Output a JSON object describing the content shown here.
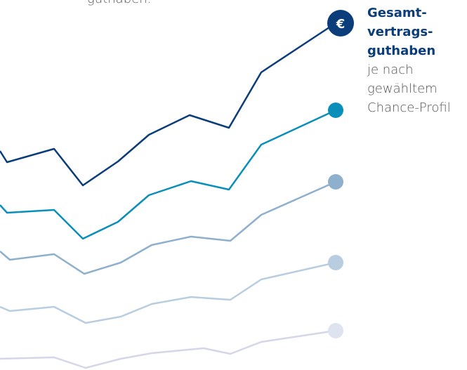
{
  "caption": "guthaben.",
  "legend": {
    "icon": "€",
    "title": [
      "Gesamt-",
      "vertrags-",
      "guthaben"
    ],
    "text": [
      "je nach",
      "gewähltem",
      "Chance-Profil"
    ]
  }
}
